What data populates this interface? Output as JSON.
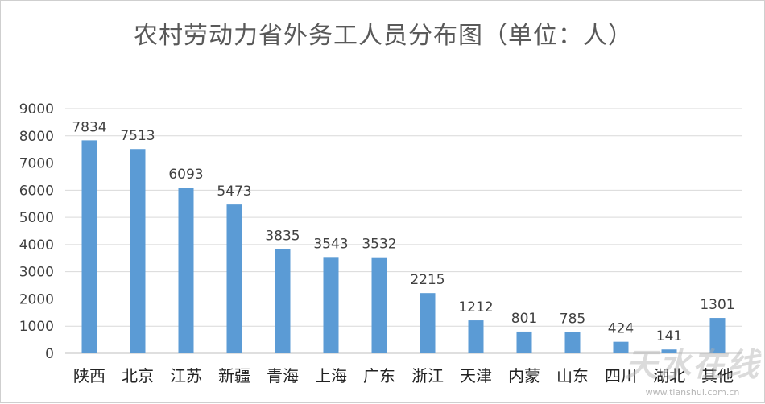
{
  "chart_data": {
    "type": "bar",
    "title": "农村劳动力省外务工人员分布图（单位：人）",
    "categories": [
      "陕西",
      "北京",
      "江苏",
      "新疆",
      "青海",
      "上海",
      "广东",
      "浙江",
      "天津",
      "内蒙",
      "山东",
      "四川",
      "湖北",
      "其他"
    ],
    "values": [
      7834,
      7513,
      6093,
      5473,
      3835,
      3543,
      3532,
      2215,
      1212,
      801,
      785,
      424,
      141,
      1301
    ],
    "ylim": [
      0,
      9000
    ],
    "yticks": [
      0,
      1000,
      2000,
      3000,
      4000,
      5000,
      6000,
      7000,
      8000,
      9000
    ],
    "grid": true,
    "legend": "none",
    "bar_color": "#5b9bd5"
  },
  "watermark": {
    "text": "天水在线",
    "url": "www.tianshui.com.cn"
  }
}
